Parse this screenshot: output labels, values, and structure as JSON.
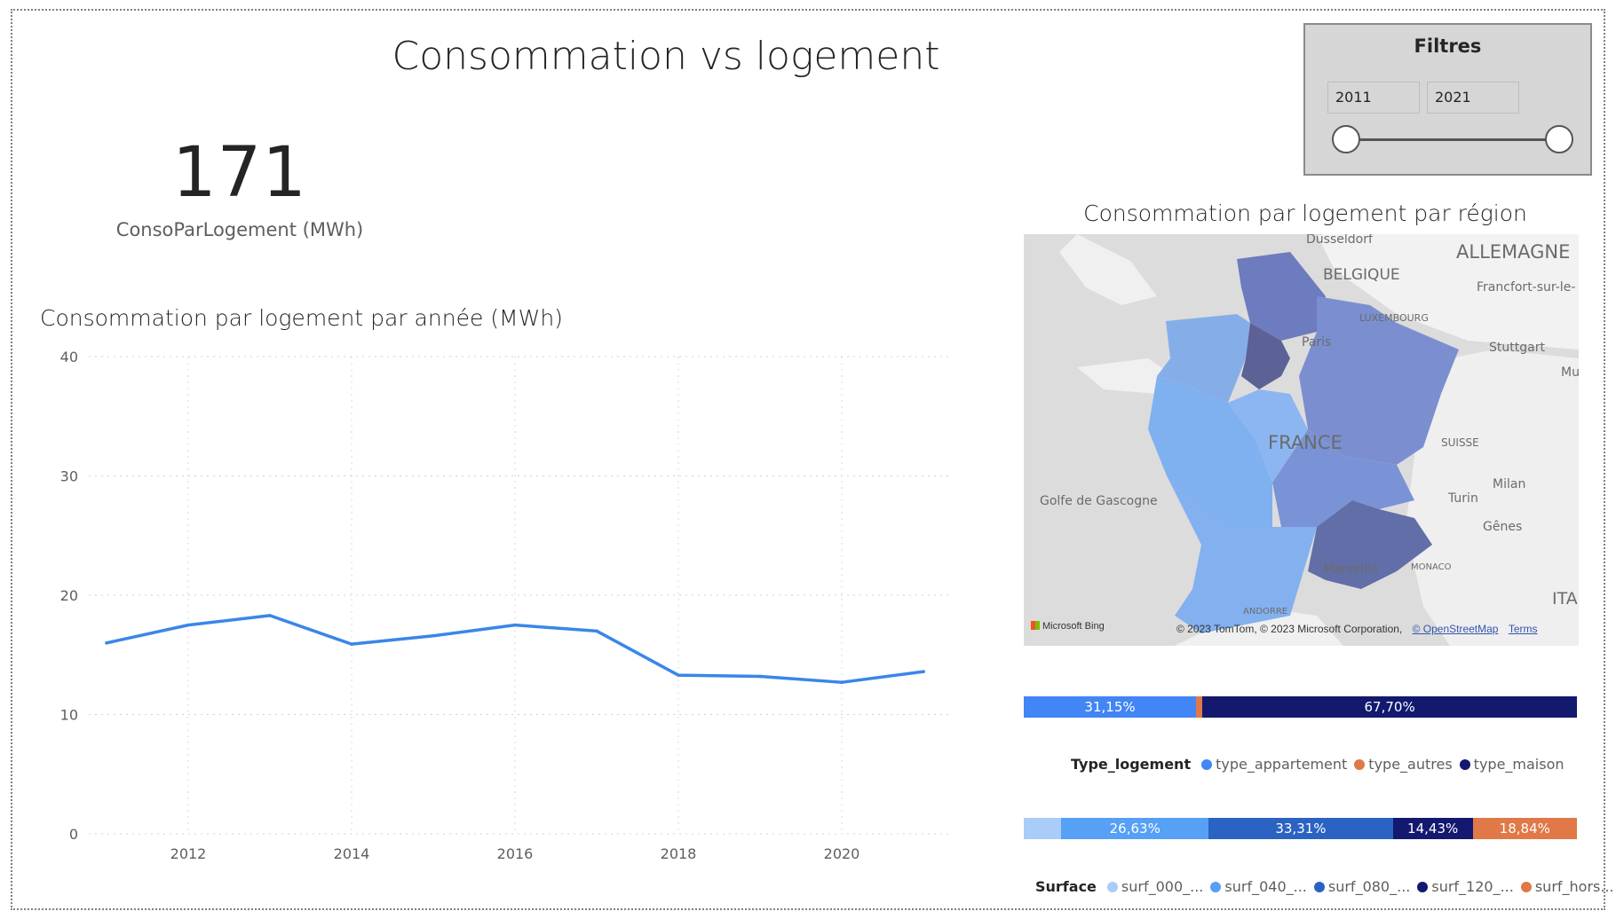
{
  "page": {
    "title": "Consommation vs logement"
  },
  "filters": {
    "title": "Filtres",
    "from": "2011",
    "to": "2021"
  },
  "kpi": {
    "value": "171",
    "label": "ConsoParLogement (MWh)"
  },
  "line_chart": {
    "title": "Consommation par logement par année (MWh)"
  },
  "map": {
    "title": "Consommation par logement par région",
    "labels": {
      "dusseldorf": "Düsseldorf",
      "allemagne": "ALLEMAGNE",
      "belgique": "BELGIQUE",
      "francfort": "Francfort-sur-le-",
      "luxembourg": "LUXEMBOURG",
      "paris": "Paris",
      "stuttgart": "Stuttgart",
      "mu": "Mu",
      "france": "FRANCE",
      "suisse": "SUISSE",
      "milan": "Milan",
      "turin": "Turin",
      "golfe": "Golfe de Gascogne",
      "genes": "Gênes",
      "marseille": "Marseille",
      "monaco": "MONACO",
      "ita": "ITA",
      "andorre": "ANDORRE"
    },
    "bing": "Microsoft Bing",
    "attribution": "© 2023 TomTom, © 2023 Microsoft Corporation,",
    "osm": "© OpenStreetMap",
    "terms": "Terms"
  },
  "type_logement": {
    "legend_title": "Type_logement",
    "items": [
      {
        "name": "type_appartement",
        "color": "#4285f4"
      },
      {
        "name": "type_autres",
        "color": "#e07848"
      },
      {
        "name": "type_maison",
        "color": "#12196f"
      }
    ],
    "bar": [
      {
        "label": "31,15%",
        "value": 31.15,
        "color": "#4285f4"
      },
      {
        "label": "",
        "value": 1.15,
        "color": "#e07848"
      },
      {
        "label": "67,70%",
        "value": 67.7,
        "color": "#12196f"
      }
    ]
  },
  "surface": {
    "legend_title": "Surface",
    "items": [
      {
        "name": "surf_000_...",
        "color": "#a9cdf8"
      },
      {
        "name": "surf_040_...",
        "color": "#56a0f5"
      },
      {
        "name": "surf_080_...",
        "color": "#2b63c2"
      },
      {
        "name": "surf_120_...",
        "color": "#12196f"
      },
      {
        "name": "surf_hors...",
        "color": "#e07848"
      }
    ],
    "bar": [
      {
        "label": "",
        "value": 6.79,
        "color": "#a9cdf8"
      },
      {
        "label": "26,63%",
        "value": 26.63,
        "color": "#56a0f5"
      },
      {
        "label": "33,31%",
        "value": 33.31,
        "color": "#2b63c2"
      },
      {
        "label": "14,43%",
        "value": 14.43,
        "color": "#12196f"
      },
      {
        "label": "18,84%",
        "value": 18.84,
        "color": "#e07848"
      }
    ]
  },
  "chart_data": {
    "type": "line",
    "title": "Consommation par logement par année (MWh)",
    "x": [
      2011,
      2012,
      2013,
      2014,
      2015,
      2016,
      2017,
      2018,
      2019,
      2020,
      2021
    ],
    "series": [
      {
        "values": [
          16.0,
          17.5,
          18.3,
          15.9,
          16.6,
          17.5,
          17.0,
          13.3,
          13.2,
          12.7,
          13.6
        ],
        "color": "#3a86e8"
      }
    ],
    "xticks": [
      2012,
      2014,
      2016,
      2018,
      2020
    ],
    "yticks": [
      0,
      10,
      20,
      30,
      40
    ],
    "xlim": [
      2011,
      2021
    ],
    "ylim": [
      0,
      40
    ],
    "grid": true
  }
}
